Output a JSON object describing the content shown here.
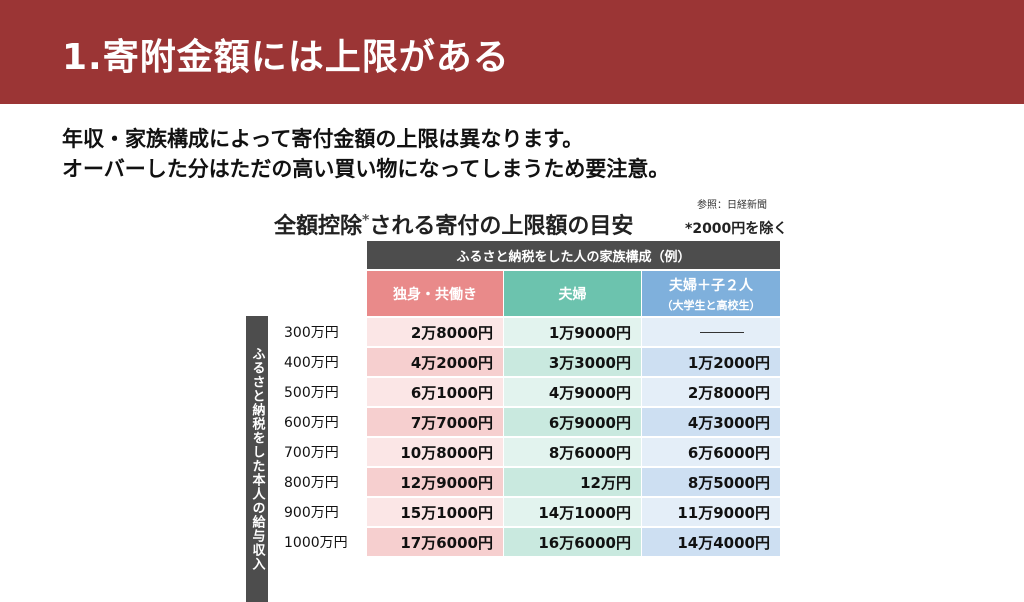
{
  "header": {
    "title": "1.寄附金額には上限がある"
  },
  "body": {
    "line1": "年収・家族構成によって寄付金額の上限は異なります。",
    "line2": "オーバーした分はただの高い買い物になってしまうため要注意。"
  },
  "table": {
    "source_note": "参照：日経新聞",
    "title": "全額控除",
    "title_asterisk": "*",
    "title_rest": "される寄付の上限額の目安",
    "exclusion_note": "*2000円を除く",
    "group_header": "ふるさと納税をした人の家族構成（例）",
    "side_label": "ふるさと納税をした本人の給与収入",
    "columns": [
      {
        "label": "独身・共働き",
        "sub": "",
        "color": "#e98a8a"
      },
      {
        "label": "夫婦",
        "sub": "",
        "color": "#6cc3ae"
      },
      {
        "label": "夫婦＋子２人",
        "sub": "（大学生と高校生）",
        "color": "#7fb0dc"
      }
    ],
    "rows": [
      {
        "income": "300万円",
        "single": "2万8000円",
        "couple": "1万9000円",
        "family": "——"
      },
      {
        "income": "400万円",
        "single": "4万2000円",
        "couple": "3万3000円",
        "family": "1万2000円"
      },
      {
        "income": "500万円",
        "single": "6万1000円",
        "couple": "4万9000円",
        "family": "2万8000円"
      },
      {
        "income": "600万円",
        "single": "7万7000円",
        "couple": "6万9000円",
        "family": "4万3000円"
      },
      {
        "income": "700万円",
        "single": "10万8000円",
        "couple": "8万6000円",
        "family": "6万6000円"
      },
      {
        "income": "800万円",
        "single": "12万9000円",
        "couple": "12万円",
        "family": "8万5000円"
      },
      {
        "income": "900万円",
        "single": "15万1000円",
        "couple": "14万1000円",
        "family": "11万9000円"
      },
      {
        "income": "1000万円",
        "single": "17万6000円",
        "couple": "16万6000円",
        "family": "14万4000円"
      }
    ],
    "row_colors": {
      "single": [
        "#fbe6e6",
        "#f6cfcf"
      ],
      "couple": [
        "#e2f3ee",
        "#c9e9df"
      ],
      "family": [
        "#e4eef8",
        "#cddff2"
      ]
    }
  }
}
